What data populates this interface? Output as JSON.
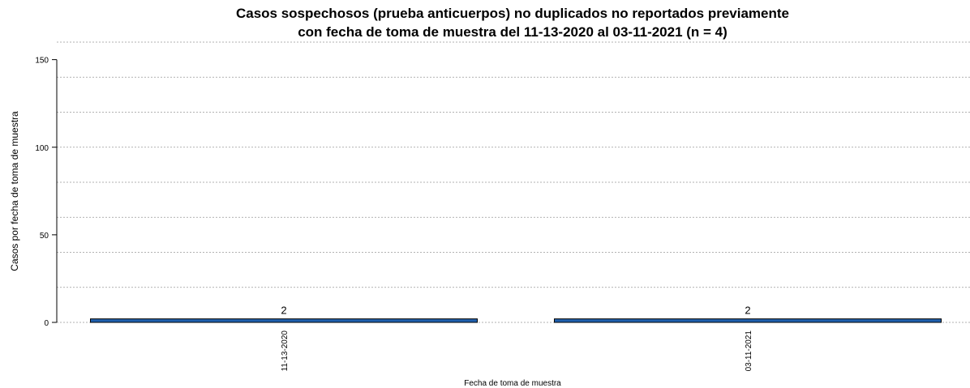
{
  "chart_data": {
    "type": "bar",
    "title": "Casos sospechosos (prueba anticuerpos) no duplicados no reportados previamente",
    "subtitle": "con fecha de toma de muestra del 11-13-2020 al 03-11-2021 (n = 4)",
    "x_label": "Fecha de toma de muestra",
    "y_label": "Casos por fecha de toma de muestra",
    "categories": [
      "11-13-2020",
      "03-11-2021"
    ],
    "values": [
      2,
      2
    ],
    "value_labels": [
      "2",
      "2"
    ],
    "color": "#1f5fad",
    "ylim": [
      0,
      160
    ],
    "yticks": [
      0,
      50,
      100,
      150
    ],
    "grid": true,
    "grid_lines": [
      0,
      20,
      40,
      60,
      80,
      100,
      120,
      140,
      160
    ]
  }
}
